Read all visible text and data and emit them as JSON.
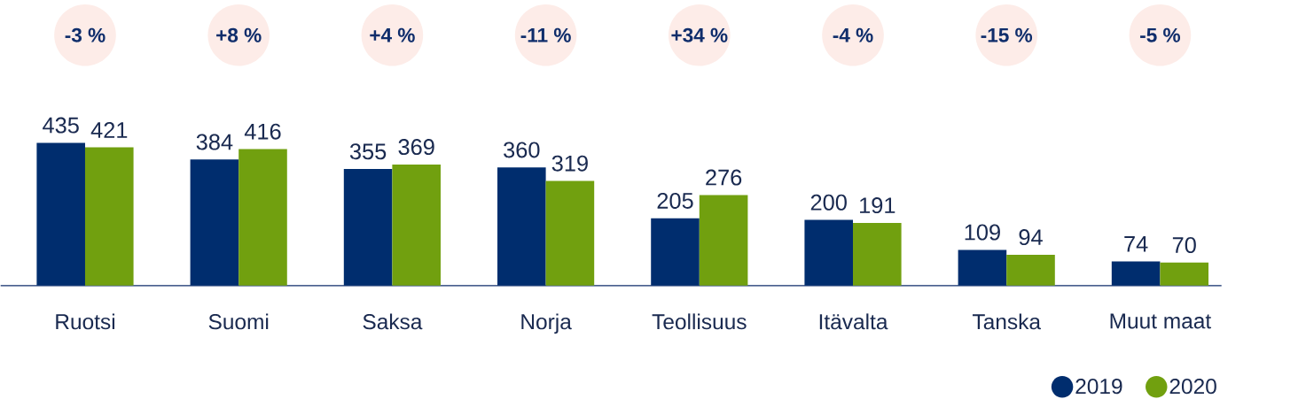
{
  "chart_data": {
    "type": "bar",
    "categories": [
      "Ruotsi",
      "Suomi",
      "Saksa",
      "Norja",
      "Teollisuus",
      "Itävalta",
      "Tanska",
      "Muut maat"
    ],
    "series": [
      {
        "name": "2019",
        "color": "#002d6e",
        "values": [
          435,
          384,
          355,
          360,
          205,
          200,
          109,
          74
        ]
      },
      {
        "name": "2020",
        "color": "#71a00f",
        "values": [
          421,
          416,
          369,
          319,
          276,
          191,
          94,
          70
        ]
      }
    ],
    "data_labels": true,
    "legend": "bottom right",
    "annotations": [
      "-3 %",
      "+8 %",
      "+4 %",
      "-11 %",
      "+34 %",
      "-4 %",
      "-15 %",
      "-5 %"
    ]
  }
}
